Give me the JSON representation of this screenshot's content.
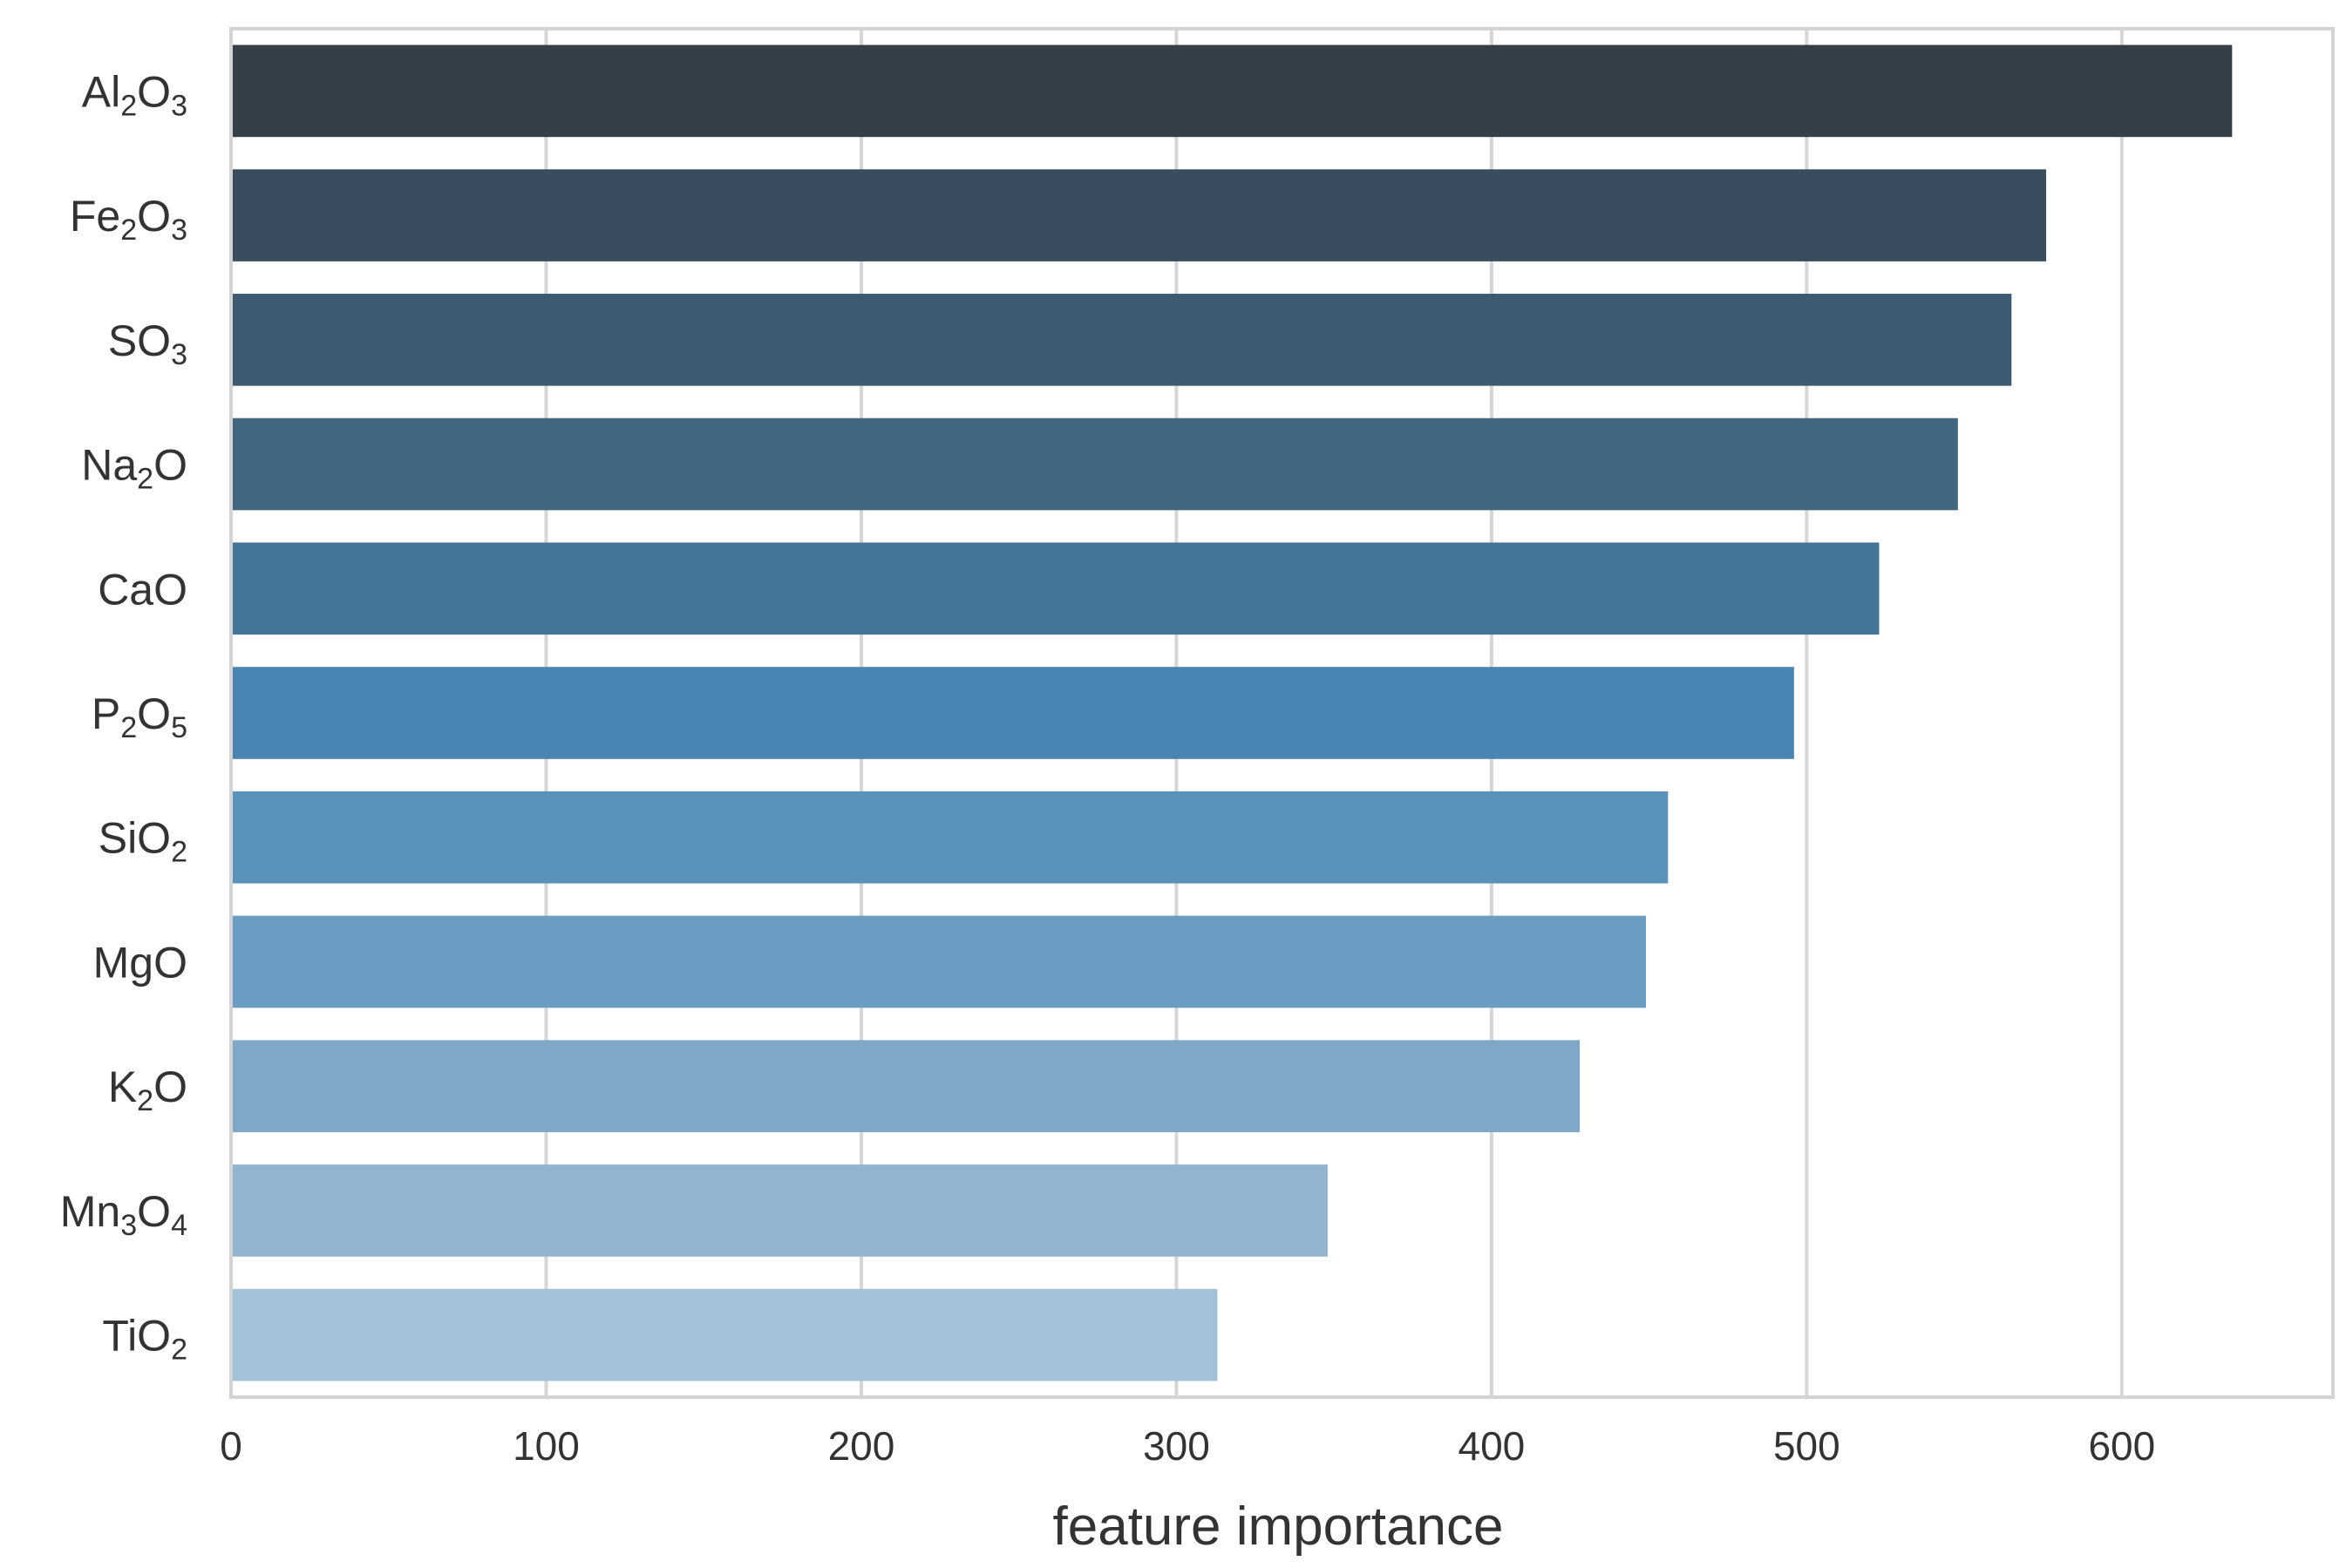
{
  "chart_data": {
    "type": "bar",
    "orientation": "horizontal",
    "categories": [
      {
        "base": "Al",
        "sub": "2",
        "base2": "O",
        "sub2": "3"
      },
      {
        "base": "Fe",
        "sub": "2",
        "base2": "O",
        "sub2": "3"
      },
      {
        "base": "SO",
        "sub": "3",
        "base2": "",
        "sub2": ""
      },
      {
        "base": "Na",
        "sub": "2",
        "base2": "O",
        "sub2": ""
      },
      {
        "base": "CaO",
        "sub": "",
        "base2": "",
        "sub2": ""
      },
      {
        "base": "P",
        "sub": "2",
        "base2": "O",
        "sub2": "5"
      },
      {
        "base": "SiO",
        "sub": "2",
        "base2": "",
        "sub2": ""
      },
      {
        "base": "MgO",
        "sub": "",
        "base2": "",
        "sub2": ""
      },
      {
        "base": "K",
        "sub": "2",
        "base2": "O",
        "sub2": ""
      },
      {
        "base": "Mn",
        "sub": "3",
        "base2": "O",
        "sub2": "4"
      },
      {
        "base": "TiO",
        "sub": "2",
        "base2": "",
        "sub2": ""
      }
    ],
    "values": [
      635,
      576,
      565,
      548,
      523,
      496,
      456,
      449,
      428,
      348,
      313
    ],
    "colors": [
      "#353f47",
      "#3a4d5e",
      "#3d5a70",
      "#416880",
      "#457596",
      "#4a84b2",
      "#5b92ba",
      "#6b9cc1",
      "#7ea8c8",
      "#91b4cf",
      "#a2c2d8"
    ],
    "xlabel": "feature importance",
    "ylabel": "",
    "title": "",
    "xlim": [
      0,
      667
    ],
    "xticks": [
      0,
      100,
      200,
      300,
      400,
      500,
      600
    ],
    "grid": "vertical"
  }
}
